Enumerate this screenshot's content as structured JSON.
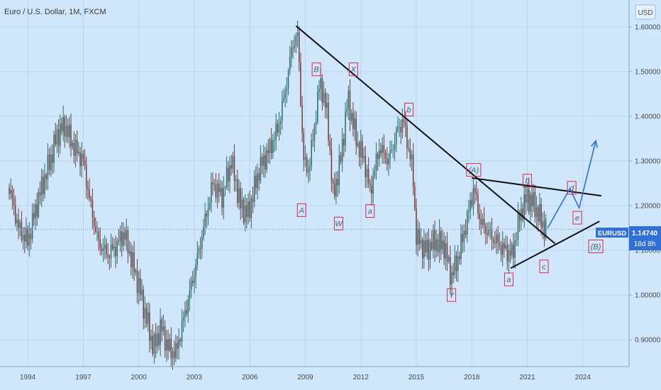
{
  "header": {
    "title": "Euro / U.S. Dollar, 1M, FXCM",
    "currency_button": "USD"
  },
  "colors": {
    "background": "#cfe6fb",
    "grid": "#b9d6f2",
    "up": "#2a6f6a",
    "down": "#7a3a3a",
    "trendline": "#111111",
    "projection": "#2f6fd6",
    "label_border": "#d9284a",
    "price_badge": "#2f6fd6",
    "price_line": "#6c8fb8"
  },
  "price_badge": {
    "price": "1.14740",
    "countdown": "18d 8h",
    "symbol": "EURUSD"
  },
  "chart_data": {
    "type": "candlestick",
    "title": "Euro / U.S. Dollar, 1M, FXCM",
    "x_ticks": [
      "1994",
      "1997",
      "2000",
      "2003",
      "2006",
      "2009",
      "2012",
      "2015",
      "2018",
      "2021",
      "2024"
    ],
    "y_ticks": [
      "1.60000",
      "1.50000",
      "1.40000",
      "1.30000",
      "1.20000",
      "1.10000",
      "1.00000",
      "0.90000"
    ],
    "x_range": [
      1992.5,
      2026.5
    ],
    "y_range": [
      0.84,
      1.66
    ],
    "grid": true,
    "last_price": 1.1474,
    "price_path": [
      [
        1993.0,
        1.24
      ],
      [
        1993.5,
        1.15
      ],
      [
        1994.0,
        1.12
      ],
      [
        1994.6,
        1.22
      ],
      [
        1995.2,
        1.3
      ],
      [
        1995.6,
        1.36
      ],
      [
        1996.0,
        1.38
      ],
      [
        1996.5,
        1.33
      ],
      [
        1997.0,
        1.3
      ],
      [
        1997.4,
        1.2
      ],
      [
        1997.8,
        1.12
      ],
      [
        1998.3,
        1.09
      ],
      [
        1998.8,
        1.11
      ],
      [
        1999.2,
        1.14
      ],
      [
        1999.6,
        1.08
      ],
      [
        2000.0,
        1.02
      ],
      [
        2000.4,
        0.95
      ],
      [
        2000.8,
        0.88
      ],
      [
        2001.2,
        0.93
      ],
      [
        2001.6,
        0.88
      ],
      [
        2002.0,
        0.87
      ],
      [
        2002.5,
        0.96
      ],
      [
        2003.0,
        1.05
      ],
      [
        2003.5,
        1.15
      ],
      [
        2004.0,
        1.25
      ],
      [
        2004.5,
        1.22
      ],
      [
        2005.0,
        1.3
      ],
      [
        2005.5,
        1.2
      ],
      [
        2005.9,
        1.18
      ],
      [
        2006.5,
        1.28
      ],
      [
        2007.0,
        1.32
      ],
      [
        2007.5,
        1.37
      ],
      [
        2007.9,
        1.45
      ],
      [
        2008.3,
        1.56
      ],
      [
        2008.6,
        1.58
      ],
      [
        2008.9,
        1.3
      ],
      [
        2009.2,
        1.28
      ],
      [
        2009.8,
        1.48
      ],
      [
        2010.2,
        1.4
      ],
      [
        2010.5,
        1.22
      ],
      [
        2010.9,
        1.3
      ],
      [
        2011.3,
        1.44
      ],
      [
        2011.8,
        1.34
      ],
      [
        2012.2,
        1.3
      ],
      [
        2012.5,
        1.23
      ],
      [
        2013.0,
        1.33
      ],
      [
        2013.5,
        1.3
      ],
      [
        2014.0,
        1.37
      ],
      [
        2014.3,
        1.39
      ],
      [
        2014.8,
        1.28
      ],
      [
        2015.0,
        1.13
      ],
      [
        2015.5,
        1.1
      ],
      [
        2016.0,
        1.12
      ],
      [
        2016.5,
        1.11
      ],
      [
        2016.9,
        1.04
      ],
      [
        2017.3,
        1.09
      ],
      [
        2017.8,
        1.18
      ],
      [
        2018.1,
        1.24
      ],
      [
        2018.5,
        1.16
      ],
      [
        2018.9,
        1.14
      ],
      [
        2019.3,
        1.12
      ],
      [
        2019.8,
        1.1
      ],
      [
        2020.2,
        1.09
      ],
      [
        2020.6,
        1.18
      ],
      [
        2021.0,
        1.22
      ],
      [
        2021.4,
        1.2
      ],
      [
        2021.8,
        1.16
      ],
      [
        2022.0,
        1.1474
      ]
    ],
    "trendlines": [
      {
        "from": [
          2008.5,
          1.602
        ],
        "to": [
          2022.5,
          1.115
        ]
      },
      {
        "from": [
          2018.0,
          1.262
        ],
        "to": [
          2025.0,
          1.222
        ]
      },
      {
        "from": [
          2020.1,
          1.06
        ],
        "to": [
          2024.9,
          1.165
        ]
      }
    ],
    "projection_path": [
      [
        2022.1,
        1.15
      ],
      [
        2023.3,
        1.238
      ],
      [
        2023.8,
        1.195
      ],
      [
        2024.7,
        1.345
      ]
    ],
    "wave_labels": [
      {
        "text": "A",
        "x": 2008.8,
        "y": 1.19,
        "boxed": true
      },
      {
        "text": "B",
        "x": 2009.6,
        "y": 1.505,
        "boxed": true
      },
      {
        "text": "W",
        "x": 2010.8,
        "y": 1.16,
        "boxed": true
      },
      {
        "text": "X",
        "x": 2011.6,
        "y": 1.505,
        "boxed": true
      },
      {
        "text": "a",
        "x": 2012.5,
        "y": 1.188,
        "boxed": true
      },
      {
        "text": "b",
        "x": 2014.6,
        "y": 1.415,
        "boxed": true
      },
      {
        "text": "Y",
        "x": 2016.9,
        "y": 1.0,
        "boxed": true
      },
      {
        "text": "(A)",
        "x": 2018.1,
        "y": 1.28,
        "boxed": true
      },
      {
        "text": "a",
        "x": 2020.0,
        "y": 1.035,
        "boxed": true
      },
      {
        "text": "b",
        "x": 2021.0,
        "y": 1.256,
        "boxed": true
      },
      {
        "text": "c",
        "x": 2021.9,
        "y": 1.064,
        "boxed": true
      },
      {
        "text": "d",
        "x": 2023.4,
        "y": 1.24,
        "boxed": true
      },
      {
        "text": "e",
        "x": 2023.7,
        "y": 1.173,
        "boxed": true
      },
      {
        "text": "(B)",
        "x": 2024.7,
        "y": 1.109,
        "boxed": true
      }
    ]
  }
}
